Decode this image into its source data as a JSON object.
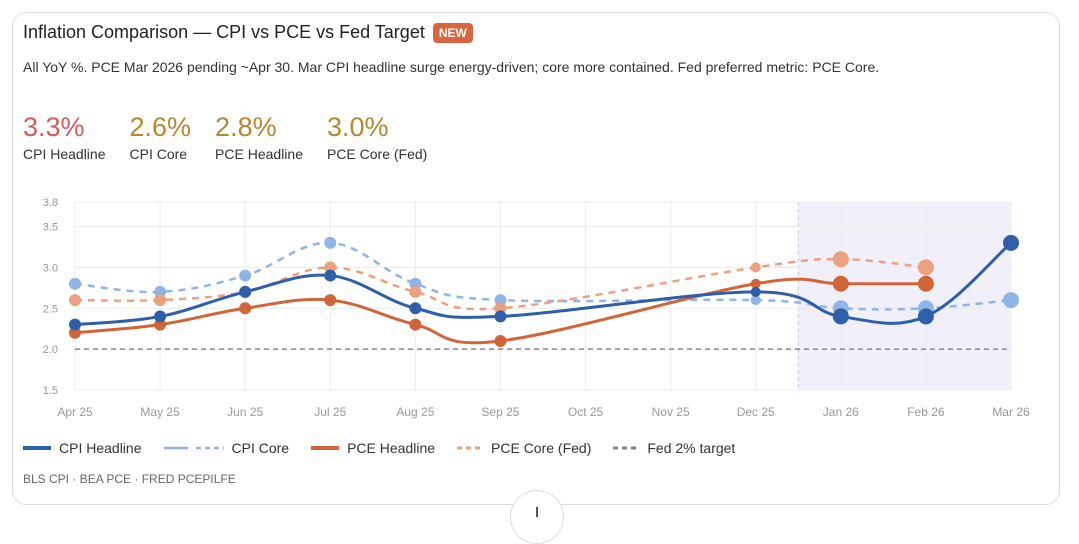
{
  "header": {
    "title": "Inflation Comparison — CPI vs PCE vs Fed Target",
    "badge": "NEW",
    "subtitle": "All YoY %. PCE Mar 2026 pending ~Apr 30. Mar CPI headline surge energy-driven; core more contained. Fed preferred metric: PCE Core."
  },
  "stats": [
    {
      "value": "3.3%",
      "label": "CPI Headline",
      "color": "#d65a5a"
    },
    {
      "value": "2.6%",
      "label": "CPI Core",
      "color": "#b8862e"
    },
    {
      "value": "2.8%",
      "label": "PCE Headline",
      "color": "#b8862e"
    },
    {
      "value": "3.0%",
      "label": "PCE Core (Fed)",
      "color": "#b8862e"
    }
  ],
  "source": "BLS CPI · BEA PCE · FRED PCEPILFE",
  "chart_data": {
    "type": "line",
    "categories": [
      "Apr 25",
      "May 25",
      "Jun 25",
      "Jul 25",
      "Aug 25",
      "Sep 25",
      "Oct 25",
      "Nov 25",
      "Dec 25",
      "Jan 26",
      "Feb 26",
      "Mar 26"
    ],
    "yticks": [
      1.5,
      2.0,
      2.5,
      3.0,
      3.5,
      3.8
    ],
    "ylim": [
      1.5,
      3.8
    ],
    "grid": true,
    "legend": "bottom",
    "highlight_from": "Dec 25/Jan 26",
    "highlight_to": "Mar 26",
    "series": [
      {
        "name": "CPI Headline",
        "color": "#2e5fa8",
        "dash": false,
        "values": [
          2.3,
          2.4,
          2.7,
          2.9,
          2.5,
          2.4,
          null,
          null,
          2.7,
          2.4,
          2.4,
          3.3
        ]
      },
      {
        "name": "CPI Core",
        "color": "#8fb4e6",
        "dash": true,
        "values": [
          2.8,
          2.7,
          2.9,
          3.3,
          2.8,
          2.6,
          null,
          null,
          2.6,
          2.5,
          2.5,
          2.6
        ]
      },
      {
        "name": "PCE Headline",
        "color": "#d0653a",
        "dash": false,
        "values": [
          2.2,
          2.3,
          2.5,
          2.6,
          2.3,
          2.1,
          null,
          null,
          2.8,
          2.8,
          2.8,
          null
        ]
      },
      {
        "name": "PCE Core (Fed)",
        "color": "#eba07f",
        "dash": true,
        "values": [
          2.6,
          2.6,
          2.7,
          3.0,
          2.7,
          2.5,
          null,
          null,
          3.0,
          3.1,
          3.0,
          null
        ]
      }
    ],
    "reference": {
      "name": "Fed 2% target",
      "value": 2.0,
      "color": "#888888"
    }
  }
}
